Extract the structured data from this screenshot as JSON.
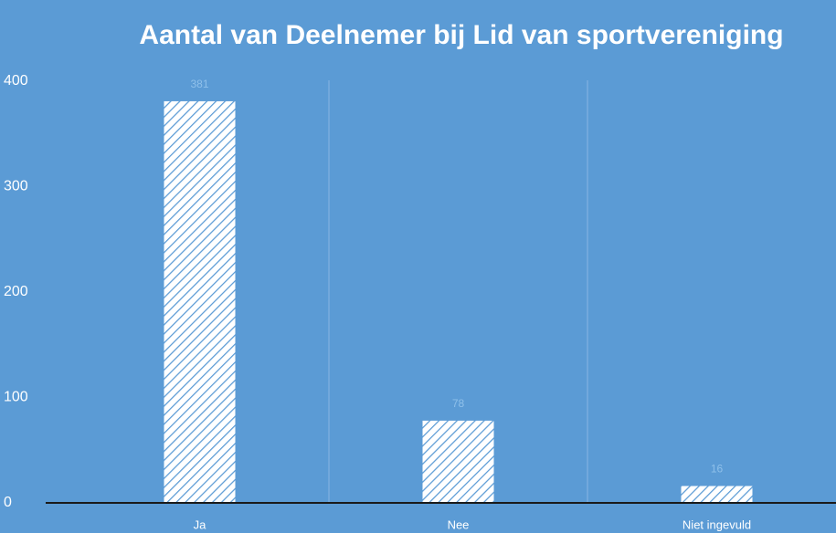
{
  "chart_data": {
    "type": "bar",
    "title": "Aantal van Deelnemer bij Lid van sportvereniging",
    "categories": [
      "Ja",
      "Nee",
      "Niet ingevuld"
    ],
    "values": [
      381,
      78,
      16
    ],
    "color": "#ffffff",
    "ylim": [
      0,
      400
    ],
    "yticks": [
      0,
      100,
      200,
      300,
      400
    ]
  }
}
